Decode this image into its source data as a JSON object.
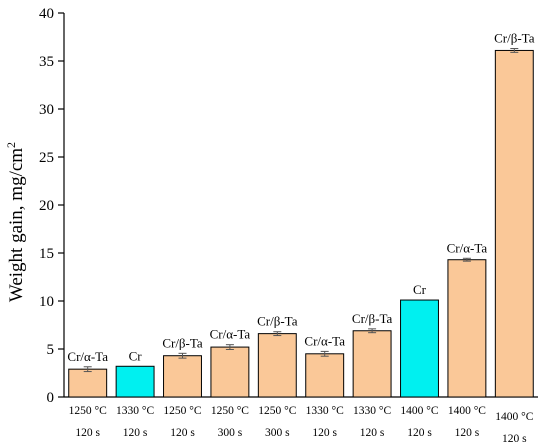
{
  "chart_data": {
    "type": "bar",
    "ylabel": "Weight gain, mg/cm",
    "ylabel_sup": "2",
    "ylim": [
      0,
      40
    ],
    "yticks": [
      0,
      5,
      10,
      15,
      20,
      25,
      30,
      35,
      40
    ],
    "grid": false,
    "colors": {
      "coated": "#FAC898",
      "uncoated": "#00F0F0",
      "edge": "#000000"
    },
    "bars": [
      {
        "temp": "1250 °C",
        "time": "120 s",
        "label": "Cr/α-Ta",
        "value": 2.9,
        "err": 0.25,
        "kind": "coated"
      },
      {
        "temp": "1330 °C",
        "time": "120 s",
        "label": "Cr",
        "value": 3.2,
        "err": 0,
        "kind": "uncoated"
      },
      {
        "temp": "1250 °C",
        "time": "120 s",
        "label": "Cr/β-Ta",
        "value": 4.3,
        "err": 0.25,
        "kind": "coated"
      },
      {
        "temp": "1250 °C",
        "time": "300 s",
        "label": "Cr/α-Ta",
        "value": 5.2,
        "err": 0.25,
        "kind": "coated"
      },
      {
        "temp": "1250 °C",
        "time": "300 s",
        "label": "Cr/β-Ta",
        "value": 6.6,
        "err": 0.2,
        "kind": "coated"
      },
      {
        "temp": "1330 °C",
        "time": "120 s",
        "label": "Cr/α-Ta",
        "value": 4.5,
        "err": 0.25,
        "kind": "coated"
      },
      {
        "temp": "1330 °C",
        "time": "120 s",
        "label": "Cr/β-Ta",
        "value": 6.9,
        "err": 0.2,
        "kind": "coated"
      },
      {
        "temp": "1400 °C",
        "time": "120 s",
        "label": "Cr",
        "value": 10.1,
        "err": 0,
        "kind": "uncoated"
      },
      {
        "temp": "1400 °C",
        "time": "120 s",
        "label": "Cr/α-Ta",
        "value": 14.3,
        "err": 0.15,
        "kind": "coated"
      },
      {
        "temp": "1400 °C",
        "time": "120 s",
        "label": "Cr/β-Ta",
        "value": 36.1,
        "err": 0.2,
        "kind": "coated"
      }
    ]
  }
}
